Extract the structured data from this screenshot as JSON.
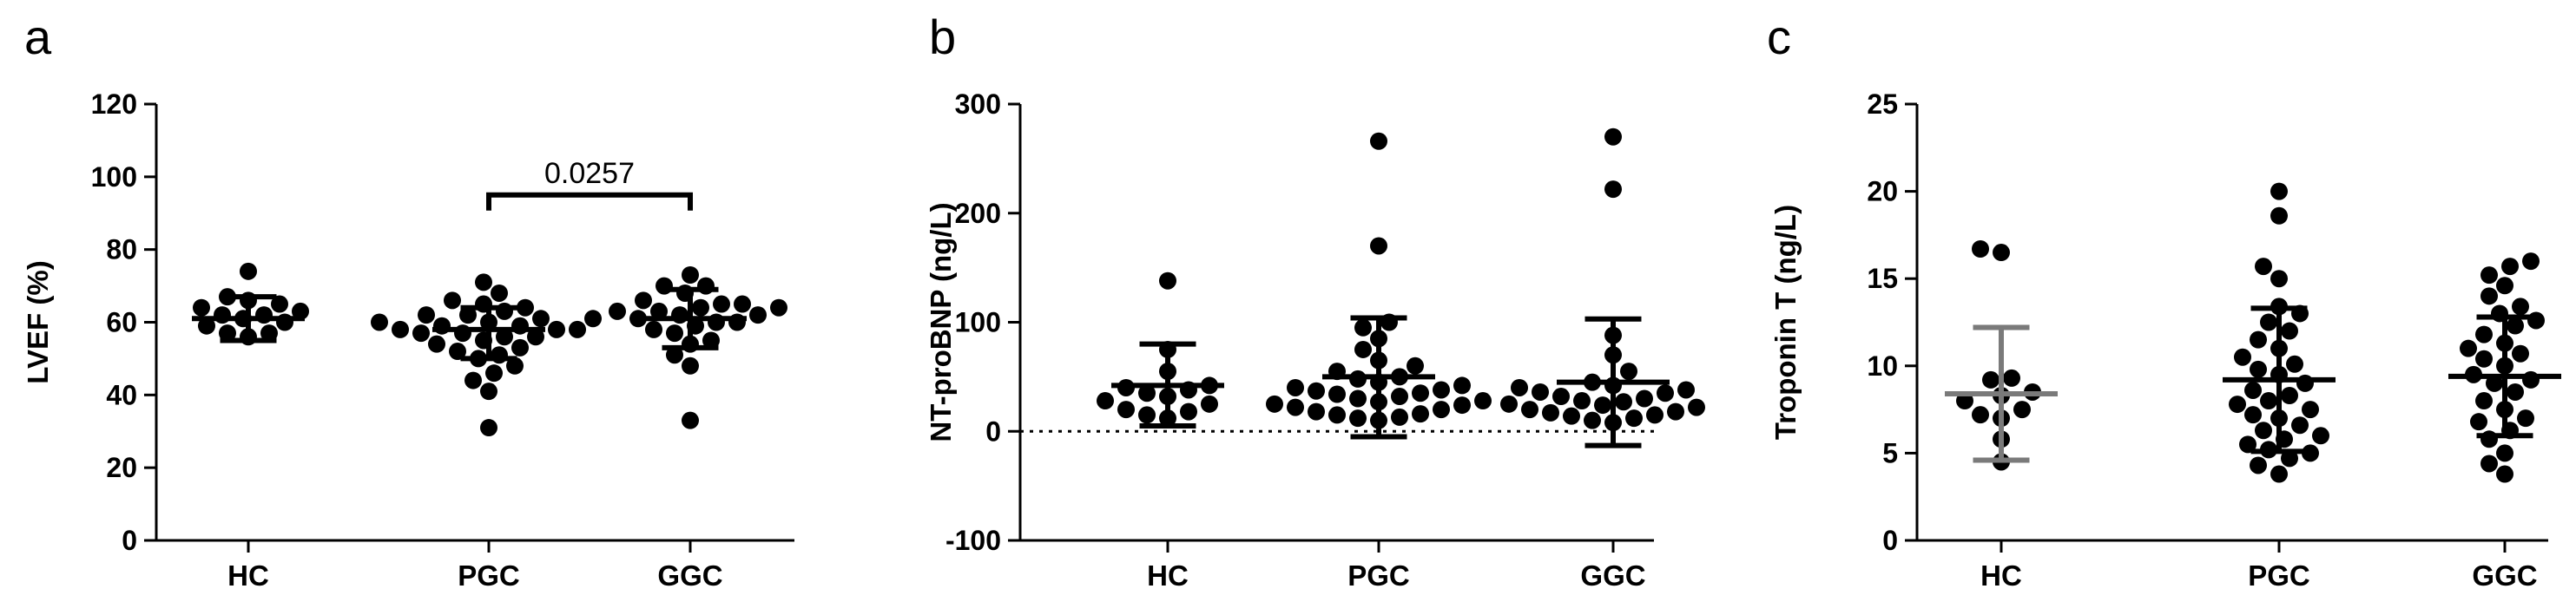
{
  "chart_data": [
    {
      "panel": "a",
      "type": "scatter",
      "ylabel": "LVEF (%)",
      "xlabel": "",
      "categories": [
        "HC",
        "PGC",
        "GGC"
      ],
      "ylim": [
        0,
        120
      ],
      "yticks": [
        "0",
        "20",
        "40",
        "60",
        "80",
        "100",
        "120"
      ],
      "zero_line": false,
      "groups": [
        {
          "name": "HC",
          "mean": 61,
          "error_low": 55,
          "error_high": 67,
          "error_color": "#000000",
          "points": [
            56,
            57,
            59,
            60,
            61,
            62,
            62,
            63,
            64,
            65,
            66,
            67,
            74,
            57
          ]
        },
        {
          "name": "PGC",
          "mean": 58,
          "error_low": 50,
          "error_high": 64,
          "error_color": "#000000",
          "points": [
            31,
            41,
            44,
            46,
            48,
            50,
            51,
            52,
            53,
            54,
            55,
            56,
            56,
            57,
            57,
            58,
            58,
            58,
            59,
            59,
            60,
            60,
            61,
            61,
            62,
            62,
            63,
            64,
            65,
            66,
            68,
            71
          ]
        },
        {
          "name": "GGC",
          "mean": 61,
          "error_low": 53,
          "error_high": 69,
          "error_color": "#000000",
          "points": [
            33,
            48,
            51,
            54,
            55,
            57,
            58,
            59,
            60,
            60,
            61,
            62,
            62,
            63,
            63,
            64,
            64,
            65,
            65,
            66,
            68,
            70,
            70,
            73
          ]
        }
      ],
      "annotations": [
        {
          "text": "0.0257",
          "from": "PGC",
          "to": "GGC",
          "at": 95
        }
      ]
    },
    {
      "panel": "b",
      "type": "scatter",
      "ylabel": "NT-proBNP (ng/L)",
      "xlabel": "",
      "categories": [
        "HC",
        "PGC",
        "GGC"
      ],
      "ylim": [
        -100,
        300
      ],
      "yticks": [
        "-100",
        "0",
        "100",
        "200",
        "300"
      ],
      "zero_line": true,
      "groups": [
        {
          "name": "HC",
          "mean": 42,
          "error_low": 5,
          "error_high": 80,
          "error_color": "#000000",
          "points": [
            12,
            15,
            18,
            20,
            25,
            28,
            32,
            35,
            38,
            40,
            42,
            55,
            75,
            138
          ]
        },
        {
          "name": "PGC",
          "mean": 50,
          "error_low": -5,
          "error_high": 104,
          "error_color": "#000000",
          "points": [
            10,
            12,
            13,
            15,
            16,
            18,
            20,
            22,
            24,
            25,
            27,
            28,
            30,
            32,
            34,
            35,
            37,
            38,
            40,
            42,
            45,
            48,
            50,
            55,
            60,
            65,
            75,
            85,
            95,
            100,
            170,
            266
          ]
        },
        {
          "name": "GGC",
          "mean": 45,
          "error_low": -13,
          "error_high": 103,
          "error_color": "#000000",
          "points": [
            8,
            10,
            12,
            14,
            15,
            17,
            18,
            20,
            22,
            24,
            25,
            27,
            28,
            30,
            32,
            35,
            36,
            38,
            40,
            42,
            45,
            55,
            70,
            88,
            222,
            270
          ]
        }
      ],
      "annotations": []
    },
    {
      "panel": "c",
      "type": "scatter",
      "ylabel": "Troponin T (ng/L)",
      "xlabel": "",
      "categories": [
        "HC",
        "PGC",
        "GGC"
      ],
      "ylim": [
        0,
        25
      ],
      "yticks": [
        "0",
        "5",
        "10",
        "15",
        "20",
        "25"
      ],
      "zero_line": false,
      "groups": [
        {
          "name": "HC",
          "mean": 8.4,
          "error_low": 4.6,
          "error_high": 12.2,
          "error_color": "#7a7a7a",
          "points": [
            4.5,
            5.8,
            7.0,
            7.2,
            7.5,
            8.0,
            8.3,
            8.5,
            9.2,
            9.3,
            16.7,
            16.5
          ]
        },
        {
          "name": "PGC",
          "mean": 9.2,
          "error_low": 5.1,
          "error_high": 13.3,
          "error_color": "#000000",
          "points": [
            3.8,
            4.3,
            4.7,
            5.0,
            5.2,
            5.5,
            5.8,
            6.0,
            6.3,
            6.6,
            7.0,
            7.2,
            7.5,
            7.8,
            8.0,
            8.3,
            8.6,
            9.0,
            9.5,
            9.8,
            10.1,
            10.5,
            11.0,
            11.5,
            12.0,
            12.5,
            13.0,
            13.4,
            15.0,
            15.7,
            18.6,
            20.0
          ]
        },
        {
          "name": "GGC",
          "mean": 9.4,
          "error_low": 6.0,
          "error_high": 12.8,
          "error_color": "#000000",
          "points": [
            3.8,
            4.4,
            5.0,
            5.8,
            6.3,
            6.8,
            7.0,
            7.5,
            8.0,
            8.5,
            9.0,
            9.2,
            9.5,
            10.0,
            10.4,
            10.7,
            11.0,
            11.3,
            11.8,
            12.3,
            12.6,
            13.0,
            13.4,
            14.0,
            14.6,
            15.2,
            15.7,
            16.0
          ]
        }
      ],
      "annotations": []
    }
  ]
}
